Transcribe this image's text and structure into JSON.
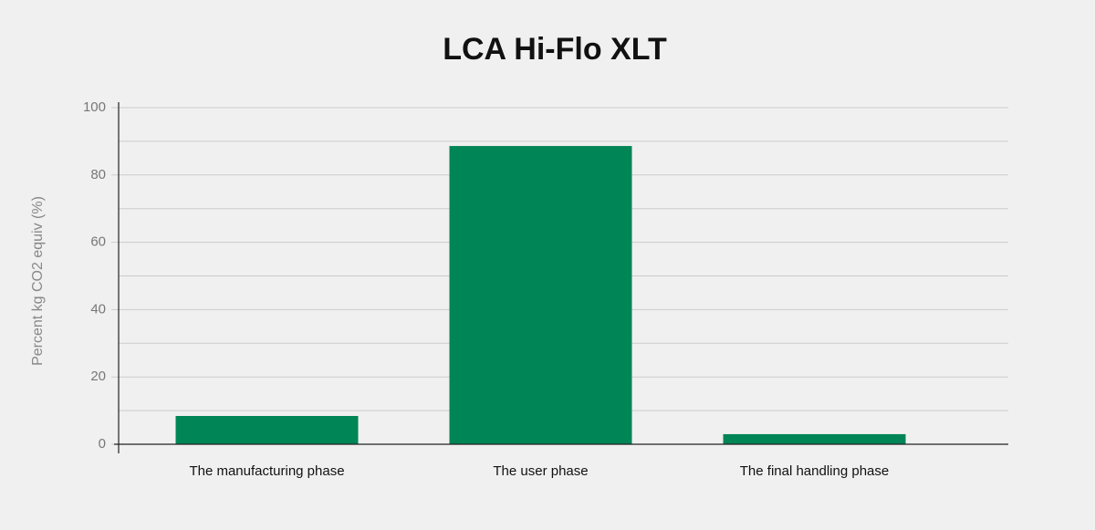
{
  "chart_data": {
    "type": "bar",
    "title": "LCA Hi-Flo XLT",
    "y_label": "Percent kg CO2 equiv (%)",
    "categories": [
      "The manufacturing phase",
      "The user phase",
      "The final handling phase"
    ],
    "values": [
      8.4,
      88.6,
      3.0
    ],
    "color": "#008556",
    "ylim": [
      0,
      100
    ],
    "yticks": [
      0,
      20,
      40,
      60,
      80,
      100
    ],
    "y_minor_ticks": [
      10,
      30,
      50,
      70,
      90
    ],
    "grid": true
  }
}
